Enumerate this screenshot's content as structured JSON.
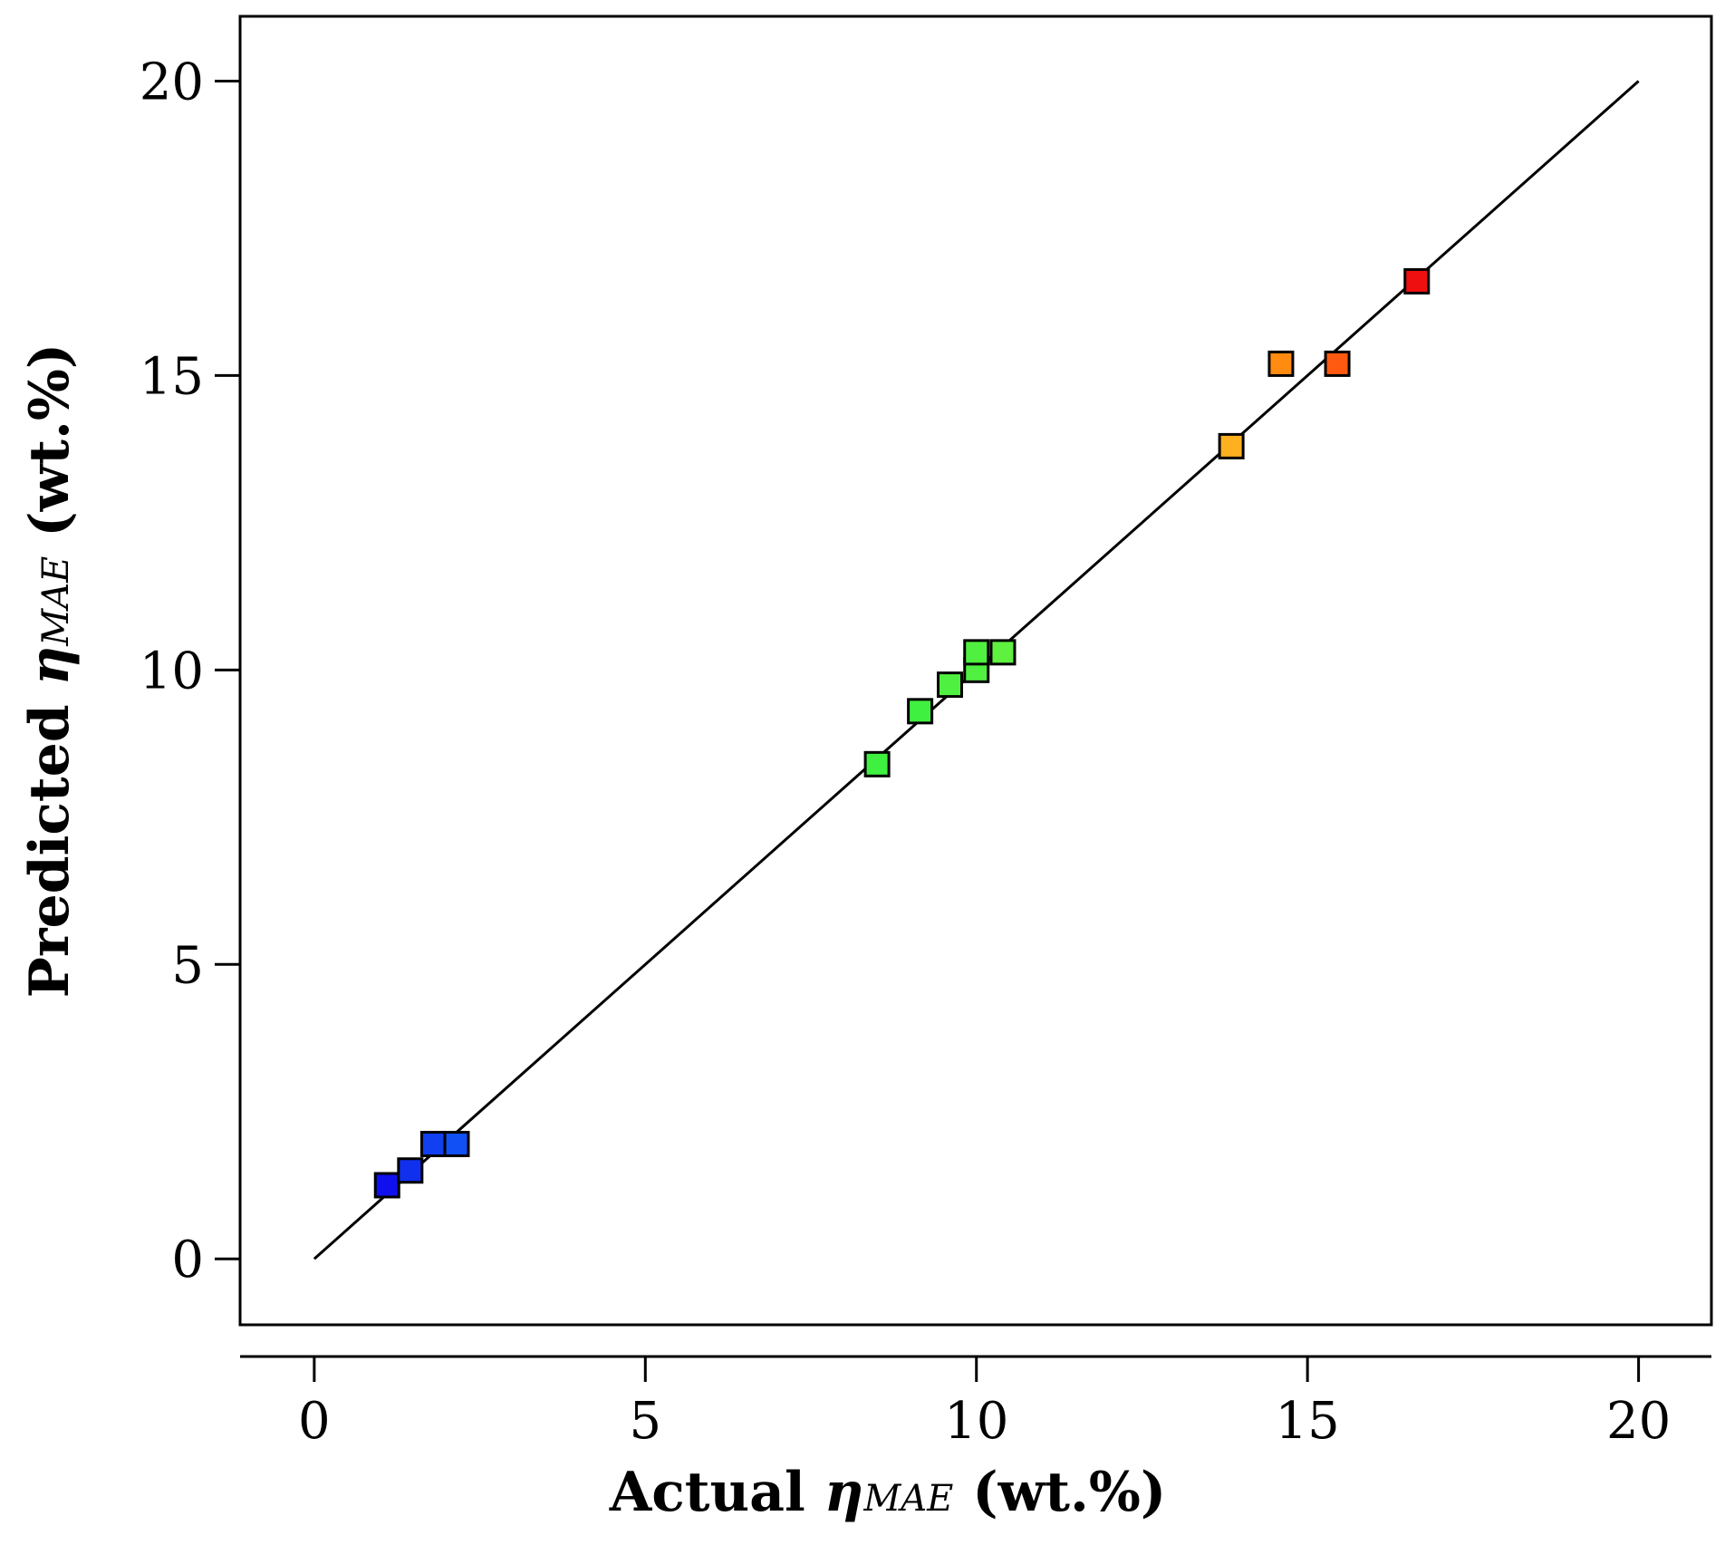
{
  "chart_data": {
    "type": "scatter",
    "title": "",
    "xlabel": {
      "prefix": "Actual ",
      "symbol": "η",
      "subscript": "MAE",
      "suffix": " (wt.%)"
    },
    "ylabel": {
      "prefix": "Predicted ",
      "symbol": "η",
      "subscript": "MAE",
      "suffix": " (wt.%)"
    },
    "xlim": [
      -1.12,
      21.1
    ],
    "ylim": [
      -1.12,
      21.1
    ],
    "xticks": [
      0,
      5,
      10,
      15,
      20
    ],
    "yticks": [
      0,
      5,
      10,
      15,
      20
    ],
    "xtick_labels": [
      "0",
      "5",
      "10",
      "15",
      "20"
    ],
    "ytick_labels": [
      "0",
      "5",
      "10",
      "15",
      "20"
    ],
    "grid": false,
    "reference_line": {
      "from": [
        0,
        0
      ],
      "to": [
        20,
        20
      ],
      "color": "#000000"
    },
    "series": [
      {
        "points": [
          {
            "x": 1.1,
            "y": 1.25,
            "color": "#1010ee"
          },
          {
            "x": 1.45,
            "y": 1.5,
            "color": "#1030ee"
          },
          {
            "x": 1.8,
            "y": 1.95,
            "color": "#1040f0"
          },
          {
            "x": 2.15,
            "y": 1.95,
            "color": "#1050f5"
          },
          {
            "x": 8.5,
            "y": 8.4,
            "color": "#40f040"
          },
          {
            "x": 9.15,
            "y": 9.3,
            "color": "#40f040"
          },
          {
            "x": 9.6,
            "y": 9.75,
            "color": "#50f040"
          },
          {
            "x": 10.0,
            "y": 10.0,
            "color": "#50f040"
          },
          {
            "x": 10.0,
            "y": 10.3,
            "color": "#50f040"
          },
          {
            "x": 10.4,
            "y": 10.3,
            "color": "#60f040"
          },
          {
            "x": 13.85,
            "y": 13.8,
            "color": "#ffb020"
          },
          {
            "x": 14.6,
            "y": 15.2,
            "color": "#ff8c10"
          },
          {
            "x": 15.45,
            "y": 15.2,
            "color": "#ff5a10"
          },
          {
            "x": 16.65,
            "y": 16.6,
            "color": "#ee1010"
          }
        ]
      }
    ]
  }
}
